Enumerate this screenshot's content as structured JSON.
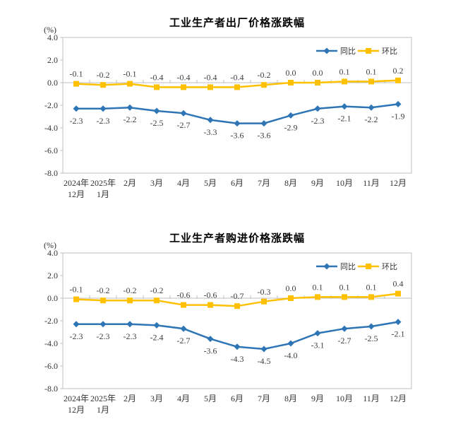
{
  "colors": {
    "axis_line": "#BFBFBF",
    "tick_label": "#333333",
    "data_label": "#404040",
    "title": "#000000",
    "yoy_blue": "#2E75B6",
    "mom_yellow": "#FFC000"
  },
  "chart_data": [
    {
      "type": "line",
      "title": "工业生产者出厂价格涨跌幅",
      "unit": "(%)",
      "ylim": [
        -8.0,
        4.0
      ],
      "ytick_step": 2.0,
      "grid": false,
      "legend_position": "top-right",
      "categories": [
        [
          "2024年",
          "12月"
        ],
        [
          "2025年",
          "1月"
        ],
        [
          "2月"
        ],
        [
          "3月"
        ],
        [
          "4月"
        ],
        [
          "5月"
        ],
        [
          "6月"
        ],
        [
          "7月"
        ],
        [
          "8月"
        ],
        [
          "9月"
        ],
        [
          "10月"
        ],
        [
          "11月"
        ],
        [
          "12月"
        ]
      ],
      "series": [
        {
          "name": "同比",
          "key": "yoy",
          "color": "#2E75B6",
          "marker": "diamond",
          "label_position": "below",
          "values": [
            -2.3,
            -2.3,
            -2.2,
            -2.5,
            -2.7,
            -3.3,
            -3.6,
            -3.6,
            -2.9,
            -2.3,
            -2.1,
            -2.2,
            -1.9
          ]
        },
        {
          "name": "环比",
          "key": "mom",
          "color": "#FFC000",
          "marker": "square",
          "label_position": "above",
          "values": [
            -0.1,
            -0.2,
            -0.1,
            -0.4,
            -0.4,
            -0.4,
            -0.4,
            -0.2,
            0.0,
            0.0,
            0.1,
            0.1,
            0.2
          ]
        }
      ]
    },
    {
      "type": "line",
      "title": "工业生产者购进价格涨跌幅",
      "unit": "(%)",
      "ylim": [
        -8.0,
        4.0
      ],
      "ytick_step": 2.0,
      "grid": false,
      "legend_position": "top-right",
      "categories": [
        [
          "2024年",
          "12月"
        ],
        [
          "2025年",
          "1月"
        ],
        [
          "2月"
        ],
        [
          "3月"
        ],
        [
          "4月"
        ],
        [
          "5月"
        ],
        [
          "6月"
        ],
        [
          "7月"
        ],
        [
          "8月"
        ],
        [
          "9月"
        ],
        [
          "10月"
        ],
        [
          "11月"
        ],
        [
          "12月"
        ]
      ],
      "series": [
        {
          "name": "同比",
          "key": "yoy",
          "color": "#2E75B6",
          "marker": "diamond",
          "label_position": "below",
          "values": [
            -2.3,
            -2.3,
            -2.3,
            -2.4,
            -2.7,
            -3.6,
            -4.3,
            -4.5,
            -4.0,
            -3.1,
            -2.7,
            -2.5,
            -2.1
          ]
        },
        {
          "name": "环比",
          "key": "mom",
          "color": "#FFC000",
          "marker": "square",
          "label_position": "above",
          "values": [
            -0.1,
            -0.2,
            -0.2,
            -0.2,
            -0.6,
            -0.6,
            -0.7,
            -0.3,
            0.0,
            0.1,
            0.1,
            0.1,
            0.4
          ]
        }
      ]
    }
  ]
}
